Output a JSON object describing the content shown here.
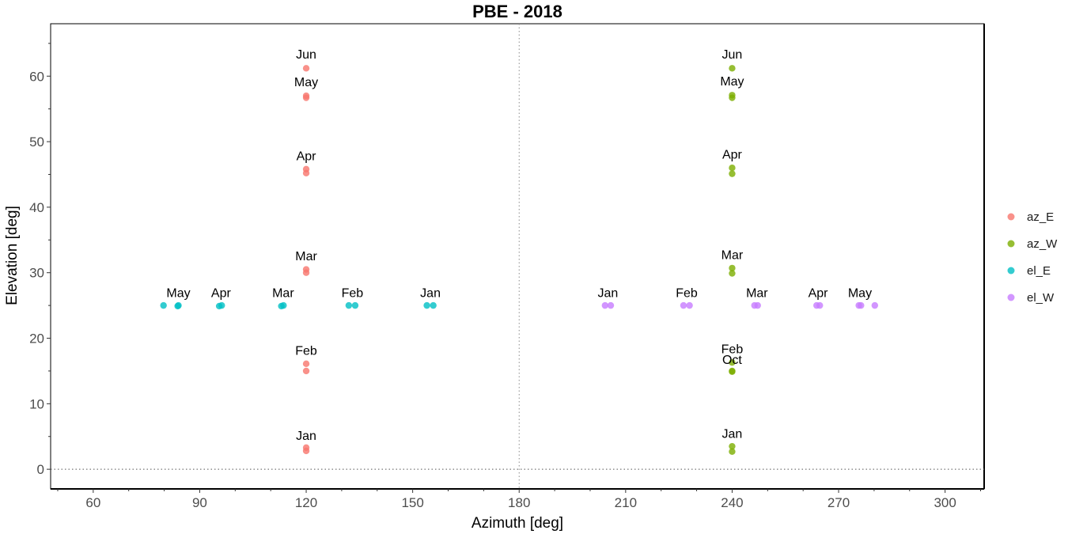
{
  "chart_data": {
    "type": "scatter",
    "title": "PBE - 2018",
    "xlabel": "Azimuth [deg]",
    "ylabel": "Elevation [deg]",
    "xlim": [
      48,
      311
    ],
    "ylim": [
      -3,
      68
    ],
    "x_ticks": [
      60,
      90,
      120,
      150,
      180,
      210,
      240,
      270,
      300
    ],
    "y_ticks": [
      0,
      10,
      20,
      30,
      40,
      50,
      60
    ],
    "grid": false,
    "reference_lines": {
      "vertical_x": 180,
      "horizontal_y": 0,
      "style": "dotted"
    },
    "legend_position": "right",
    "series": [
      {
        "name": "az_E",
        "color": "#F8766D",
        "points": [
          {
            "x": 120,
            "y": 2.8
          },
          {
            "x": 120,
            "y": 3.3
          },
          {
            "x": 120,
            "y": 15.0
          },
          {
            "x": 120,
            "y": 16.1
          },
          {
            "x": 120,
            "y": 30.0
          },
          {
            "x": 120,
            "y": 30.5
          },
          {
            "x": 120,
            "y": 45.2
          },
          {
            "x": 120,
            "y": 45.8
          },
          {
            "x": 120,
            "y": 56.7
          },
          {
            "x": 120,
            "y": 57.0
          },
          {
            "x": 120,
            "y": 61.2
          }
        ]
      },
      {
        "name": "az_W",
        "color": "#7CAE00",
        "points": [
          {
            "x": 240,
            "y": 2.7
          },
          {
            "x": 240,
            "y": 3.5
          },
          {
            "x": 240,
            "y": 14.9
          },
          {
            "x": 240,
            "y": 15.0
          },
          {
            "x": 240,
            "y": 16.3
          },
          {
            "x": 240,
            "y": 29.9
          },
          {
            "x": 240,
            "y": 30.7
          },
          {
            "x": 240,
            "y": 45.1
          },
          {
            "x": 240,
            "y": 46.0
          },
          {
            "x": 240,
            "y": 56.7
          },
          {
            "x": 240,
            "y": 57.1
          },
          {
            "x": 240,
            "y": 61.2
          }
        ]
      },
      {
        "name": "el_E",
        "color": "#00BFC4",
        "points": [
          {
            "x": 79.8,
            "y": 25.0
          },
          {
            "x": 83.8,
            "y": 24.9
          },
          {
            "x": 84.0,
            "y": 25.0
          },
          {
            "x": 95.5,
            "y": 24.9
          },
          {
            "x": 96.2,
            "y": 25.0
          },
          {
            "x": 113.0,
            "y": 24.9
          },
          {
            "x": 113.6,
            "y": 25.0
          },
          {
            "x": 132.0,
            "y": 25.0
          },
          {
            "x": 133.8,
            "y": 25.0
          },
          {
            "x": 154.0,
            "y": 25.0
          },
          {
            "x": 155.8,
            "y": 25.0
          }
        ]
      },
      {
        "name": "el_W",
        "color": "#C77CFF",
        "points": [
          {
            "x": 204.2,
            "y": 25.0
          },
          {
            "x": 205.8,
            "y": 25.0
          },
          {
            "x": 226.3,
            "y": 25.0
          },
          {
            "x": 228.0,
            "y": 25.0
          },
          {
            "x": 246.3,
            "y": 25.0
          },
          {
            "x": 247.2,
            "y": 25.0
          },
          {
            "x": 263.8,
            "y": 25.0
          },
          {
            "x": 264.7,
            "y": 25.0
          },
          {
            "x": 275.7,
            "y": 25.0
          },
          {
            "x": 276.3,
            "y": 25.0
          },
          {
            "x": 280.2,
            "y": 25.0
          }
        ]
      }
    ],
    "annotations": [
      {
        "text": "Jan",
        "x": 120,
        "y": 4.0
      },
      {
        "text": "Feb",
        "x": 120,
        "y": 17.0
      },
      {
        "text": "Mar",
        "x": 120,
        "y": 31.4
      },
      {
        "text": "Apr",
        "x": 120,
        "y": 46.7
      },
      {
        "text": "May",
        "x": 120,
        "y": 58.0
      },
      {
        "text": "Jun",
        "x": 120,
        "y": 62.2
      },
      {
        "text": "Jan",
        "x": 240,
        "y": 4.3
      },
      {
        "text": "Oct",
        "x": 240,
        "y": 15.6
      },
      {
        "text": "Feb",
        "x": 240,
        "y": 17.2
      },
      {
        "text": "Mar",
        "x": 240,
        "y": 31.6
      },
      {
        "text": "Apr",
        "x": 240,
        "y": 46.9
      },
      {
        "text": "May",
        "x": 240,
        "y": 58.1
      },
      {
        "text": "Jun",
        "x": 240,
        "y": 62.2
      },
      {
        "text": "May",
        "x": 84.0,
        "y": 25.8
      },
      {
        "text": "Apr",
        "x": 96.0,
        "y": 25.8
      },
      {
        "text": "Mar",
        "x": 113.5,
        "y": 25.8
      },
      {
        "text": "Feb",
        "x": 133.0,
        "y": 25.8
      },
      {
        "text": "Jan",
        "x": 155.0,
        "y": 25.8
      },
      {
        "text": "Jan",
        "x": 205.0,
        "y": 25.8
      },
      {
        "text": "Feb",
        "x": 227.2,
        "y": 25.8
      },
      {
        "text": "Mar",
        "x": 247.0,
        "y": 25.8
      },
      {
        "text": "Apr",
        "x": 264.2,
        "y": 25.8
      },
      {
        "text": "May",
        "x": 276.0,
        "y": 25.8
      }
    ]
  }
}
